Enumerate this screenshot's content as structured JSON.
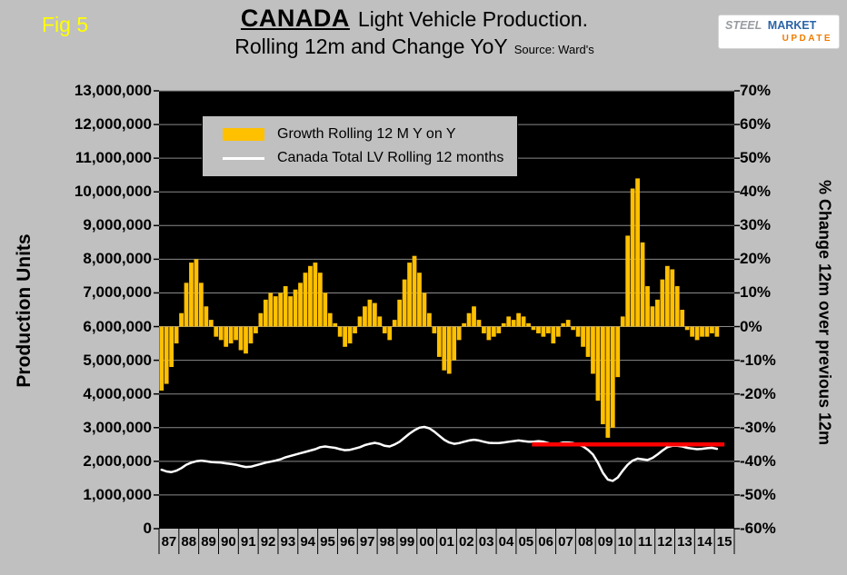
{
  "fig_label": "Fig 5",
  "title": {
    "country": "CANADA",
    "rest": "Light Vehicle Production.",
    "line2": "Rolling 12m and Change YoY",
    "source": "Source: Ward's"
  },
  "logo": {
    "steel": "STEEL",
    "market": "MARKET",
    "update": "UPDATE"
  },
  "left_axis": {
    "title": "Production Units",
    "ticks": [
      "13,000,000",
      "12,000,000",
      "11,000,000",
      "10,000,000",
      "9,000,000",
      "8,000,000",
      "7,000,000",
      "6,000,000",
      "5,000,000",
      "4,000,000",
      "3,000,000",
      "2,000,000",
      "1,000,000",
      "0"
    ]
  },
  "right_axis": {
    "title": "% Change 12m over previous 12m",
    "ticks": [
      "70%",
      "60%",
      "50%",
      "40%",
      "30%",
      "20%",
      "10%",
      "0%",
      "-10%",
      "-20%",
      "-30%",
      "-40%",
      "-50%",
      "-60%"
    ]
  },
  "x_axis": {
    "labels": [
      "87",
      "88",
      "89",
      "90",
      "91",
      "92",
      "93",
      "94",
      "95",
      "96",
      "97",
      "98",
      "99",
      "00",
      "01",
      "02",
      "03",
      "04",
      "05",
      "06",
      "07",
      "08",
      "09",
      "10",
      "11",
      "12",
      "13",
      "14",
      "15"
    ]
  },
  "legend": [
    {
      "label": "Growth Rolling 12 M Y on Y",
      "color": "#FFC000",
      "swatch": "bar"
    },
    {
      "label": "Canada Total LV Rolling 12 months",
      "color": "#FFFFFF",
      "swatch": "line"
    }
  ],
  "colors": {
    "background": "#C0C0C0",
    "plot_bg": "#000000",
    "bar": "#FFC000",
    "line": "#FFFFFF",
    "ref_line": "#FF0000",
    "gridline": "#8A8A8A",
    "tick_mark": "#000000",
    "fig_label": "#FFFF00",
    "logo_steel": "#989CA0",
    "logo_market": "#2B64A7",
    "logo_update": "#F07C00"
  },
  "chart_data": {
    "type": "combo",
    "title": "CANADA Light Vehicle Production. Rolling 12m and Change YoY",
    "source": "Ward's",
    "x_start_year": 1987,
    "x_end_year": 2015,
    "points_per_year": 4,
    "left_axis": {
      "label": "Production Units",
      "min": 0,
      "max": 13000000,
      "step": 1000000
    },
    "right_axis": {
      "label": "% Change 12m over previous 12m",
      "min": -60,
      "max": 70,
      "step": 10,
      "unit": "%"
    },
    "grid": "horizontal",
    "legend_position": "top-left-inside",
    "series": [
      {
        "name": "Growth Rolling 12 M Y on Y",
        "type": "bar",
        "axis": "right",
        "unit": "%",
        "color": "#FFC000",
        "values": [
          -19,
          -17,
          -12,
          -5,
          4,
          13,
          19,
          20,
          13,
          6,
          2,
          -3,
          -4,
          -6,
          -5,
          -4,
          -7,
          -8,
          -5,
          -2,
          4,
          8,
          10,
          9,
          10,
          12,
          9,
          11,
          13,
          16,
          18,
          19,
          16,
          10,
          4,
          1,
          -3,
          -6,
          -5,
          -2,
          3,
          6,
          8,
          7,
          3,
          -2,
          -4,
          2,
          8,
          14,
          19,
          21,
          16,
          10,
          4,
          -2,
          -9,
          -13,
          -14,
          -10,
          -4,
          1,
          4,
          6,
          2,
          -2,
          -4,
          -3,
          -2,
          1,
          3,
          2,
          4,
          3,
          1,
          -1,
          -2,
          -3,
          -2,
          -5,
          -3,
          1,
          2,
          -1,
          -3,
          -6,
          -9,
          -14,
          -22,
          -29,
          -33,
          -30,
          -15,
          3,
          27,
          41,
          44,
          25,
          12,
          6,
          8,
          14,
          18,
          17,
          12,
          5,
          -1,
          -3,
          -4,
          -3,
          -3,
          -2,
          -3
        ]
      },
      {
        "name": "Canada Total LV Rolling 12 months",
        "type": "line",
        "axis": "left",
        "unit": "units",
        "color": "#FFFFFF",
        "values": [
          1750000,
          1700000,
          1680000,
          1720000,
          1800000,
          1900000,
          1960000,
          2000000,
          2020000,
          2000000,
          1980000,
          1970000,
          1960000,
          1940000,
          1920000,
          1900000,
          1860000,
          1830000,
          1840000,
          1880000,
          1920000,
          1960000,
          1990000,
          2020000,
          2060000,
          2120000,
          2160000,
          2200000,
          2240000,
          2280000,
          2320000,
          2360000,
          2420000,
          2440000,
          2420000,
          2400000,
          2360000,
          2330000,
          2340000,
          2380000,
          2420000,
          2480000,
          2520000,
          2550000,
          2520000,
          2460000,
          2440000,
          2500000,
          2580000,
          2700000,
          2820000,
          2920000,
          3000000,
          3020000,
          2980000,
          2880000,
          2760000,
          2640000,
          2560000,
          2520000,
          2540000,
          2580000,
          2620000,
          2640000,
          2620000,
          2580000,
          2550000,
          2540000,
          2540000,
          2560000,
          2580000,
          2600000,
          2620000,
          2600000,
          2580000,
          2580000,
          2600000,
          2580000,
          2540000,
          2500000,
          2520000,
          2560000,
          2560000,
          2540000,
          2500000,
          2440000,
          2340000,
          2200000,
          1960000,
          1660000,
          1460000,
          1420000,
          1520000,
          1720000,
          1900000,
          2020000,
          2080000,
          2060000,
          2040000,
          2100000,
          2200000,
          2320000,
          2420000,
          2460000,
          2460000,
          2440000,
          2400000,
          2380000,
          2360000,
          2370000,
          2390000,
          2400000,
          2370000
        ]
      }
    ],
    "ref_line": {
      "color": "#FF0000",
      "value": 2500000,
      "x_start_year": 2005.8,
      "x_end_year": 2015.5
    }
  }
}
